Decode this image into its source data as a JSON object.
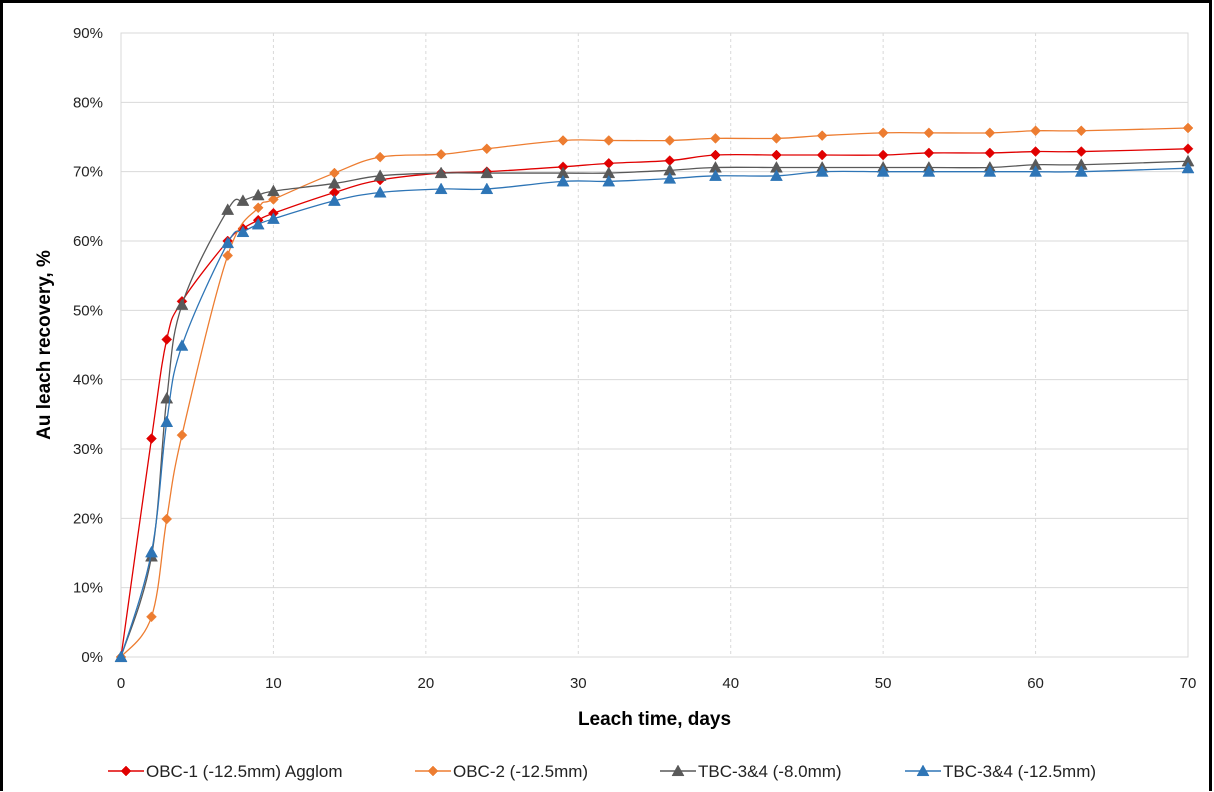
{
  "chart_data": {
    "type": "line",
    "title": "",
    "xlabel": "Leach time, days",
    "ylabel": "Au leach recovery, %",
    "xlim": [
      0,
      70
    ],
    "ylim": [
      0,
      90
    ],
    "xticks": [
      0,
      10,
      20,
      30,
      40,
      50,
      60,
      70
    ],
    "yticks": [
      0,
      10,
      20,
      30,
      40,
      50,
      60,
      70,
      80,
      90
    ],
    "xtick_labels": [
      "0",
      "10",
      "20",
      "30",
      "40",
      "50",
      "60",
      "70"
    ],
    "ytick_labels": [
      "0%",
      "10%",
      "20%",
      "30%",
      "40%",
      "50%",
      "60%",
      "70%",
      "80%",
      "90%"
    ],
    "grid": true,
    "legend_position": "bottom",
    "series": [
      {
        "name": "OBC-1 (-12.5mm) Agglom",
        "color": "#e00000",
        "marker": "diamond",
        "x": [
          0,
          2,
          3,
          4,
          7,
          8,
          9,
          10,
          14,
          17,
          21,
          24,
          29,
          32,
          36,
          39,
          43,
          46,
          50,
          53,
          57,
          60,
          63,
          70
        ],
        "y": [
          0,
          31.5,
          45.8,
          51.3,
          60.0,
          61.8,
          63.0,
          64.0,
          67.0,
          68.8,
          69.8,
          70.0,
          70.7,
          71.2,
          71.6,
          72.4,
          72.4,
          72.4,
          72.4,
          72.7,
          72.7,
          72.9,
          72.9,
          73.3
        ]
      },
      {
        "name": "OBC-2 (-12.5mm)",
        "color": "#ed7d31",
        "marker": "diamond",
        "x": [
          0,
          2,
          3,
          4,
          7,
          9,
          10,
          14,
          17,
          21,
          24,
          29,
          32,
          36,
          39,
          43,
          46,
          50,
          53,
          57,
          60,
          63,
          70
        ],
        "y": [
          0,
          5.8,
          19.9,
          32.0,
          57.9,
          64.8,
          66.0,
          69.8,
          72.1,
          72.5,
          73.3,
          74.5,
          74.5,
          74.5,
          74.8,
          74.8,
          75.2,
          75.6,
          75.6,
          75.6,
          75.9,
          75.9,
          76.3
        ]
      },
      {
        "name": "TBC-3&4 (-8.0mm)",
        "color": "#595959",
        "marker": "triangle",
        "x": [
          0,
          2,
          3,
          4,
          7,
          8,
          9,
          10,
          14,
          17,
          21,
          24,
          29,
          32,
          36,
          39,
          43,
          46,
          50,
          53,
          57,
          60,
          63,
          70
        ],
        "y": [
          0,
          14.5,
          37.3,
          50.8,
          64.5,
          65.8,
          66.6,
          67.2,
          68.3,
          69.4,
          69.8,
          69.8,
          69.8,
          69.8,
          70.2,
          70.6,
          70.6,
          70.6,
          70.6,
          70.6,
          70.6,
          71.0,
          71.0,
          71.5
        ]
      },
      {
        "name": "TBC-3&4 (-12.5mm)",
        "color": "#2e75b6",
        "marker": "triangle",
        "x": [
          0,
          2,
          3,
          4,
          7,
          8,
          9,
          10,
          14,
          17,
          21,
          24,
          29,
          32,
          36,
          39,
          43,
          46,
          50,
          53,
          57,
          60,
          63,
          70
        ],
        "y": [
          0,
          15.1,
          33.9,
          44.9,
          59.7,
          61.3,
          62.4,
          63.2,
          65.8,
          67.0,
          67.5,
          67.5,
          68.6,
          68.6,
          69.0,
          69.4,
          69.4,
          70.0,
          70.0,
          70.0,
          70.0,
          70.0,
          70.0,
          70.5
        ]
      }
    ]
  }
}
